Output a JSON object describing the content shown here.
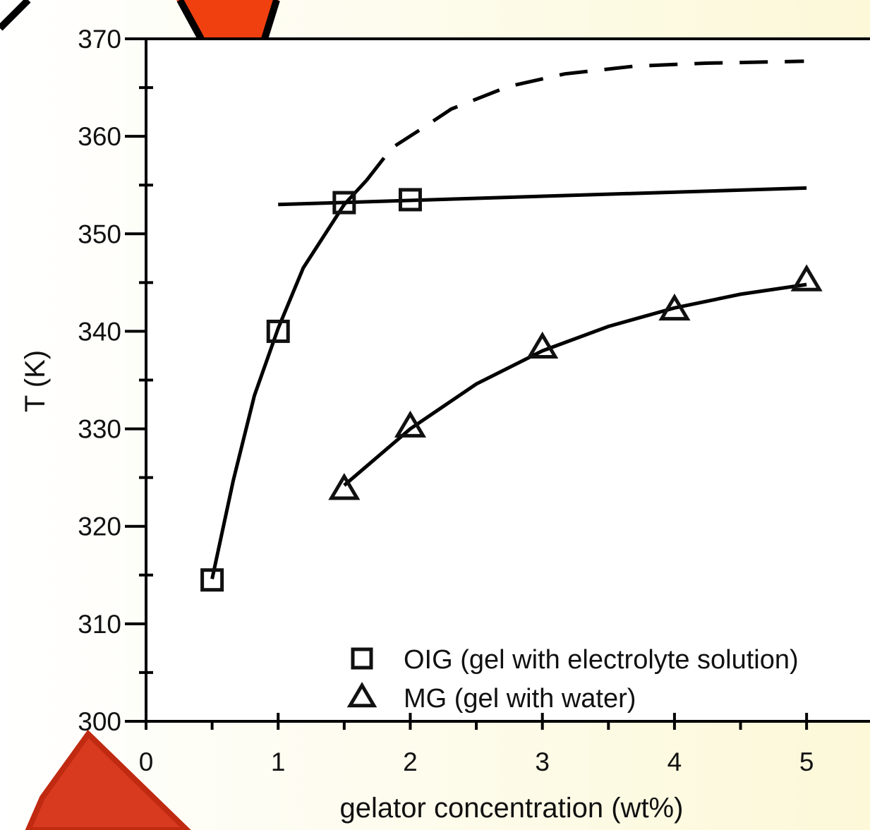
{
  "chart_data": {
    "type": "scatter",
    "x_label": "gelator concentration (wt%)",
    "y_label": "T (K)",
    "xlim": [
      0,
      5.48
    ],
    "ylim": [
      300,
      370
    ],
    "xticks": [
      0,
      1,
      2,
      3,
      4,
      5
    ],
    "yticks": [
      300,
      310,
      320,
      330,
      340,
      350,
      360,
      370
    ],
    "legend": "lower right",
    "series": [
      {
        "name": "OIG (gel with electrolyte solution)",
        "marker": "square",
        "color": "#111111",
        "x": [
          0.5,
          1,
          1.5,
          2
        ],
        "values": [
          314.5,
          340,
          353.2,
          353.5
        ]
      },
      {
        "name": "MG (gel with water)",
        "marker": "triangle",
        "color": "#111111",
        "x": [
          1.5,
          2,
          3,
          4,
          5
        ],
        "values": [
          323.8,
          330.2,
          338.3,
          342.2,
          345.2
        ]
      }
    ],
    "lines": [
      {
        "style": "solid",
        "x": [
          0.5,
          0.66,
          0.82,
          1.0,
          1.19,
          1.5,
          1.67
        ],
        "values": [
          314.6,
          324.7,
          333.4,
          340.3,
          346.5,
          353,
          355.5
        ]
      },
      {
        "style": "dashed",
        "x": [
          1.67,
          1.86,
          2.1,
          2.31,
          2.74,
          3.17,
          3.7,
          4.24,
          4.98
        ],
        "values": [
          355.5,
          358.8,
          360.9,
          362.8,
          365.1,
          366.4,
          367.2,
          367.5,
          367.7
        ]
      },
      {
        "style": "solid",
        "x": [
          1,
          5
        ],
        "values": [
          353,
          354.7
        ]
      },
      {
        "style": "solid",
        "x": [
          1.5,
          2,
          2.5,
          3,
          3.5,
          4,
          4.5,
          5
        ],
        "values": [
          324.2,
          330,
          334.6,
          338,
          340.5,
          342.4,
          343.8,
          344.8
        ]
      }
    ]
  }
}
